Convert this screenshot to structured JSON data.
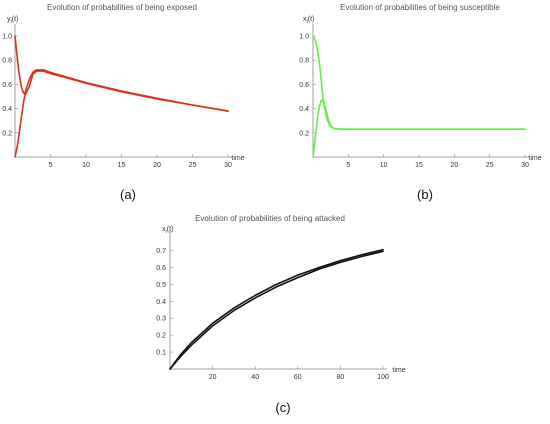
{
  "chart_data": [
    {
      "type": "line",
      "title": "Evolution of probabilities of being exposed",
      "ylabel": "y_i(t)",
      "xlabel": "time",
      "panel_label": "(a)",
      "xlim": [
        0,
        30
      ],
      "ylim": [
        0,
        1.05
      ],
      "xticks": [
        5,
        10,
        15,
        20,
        25,
        30
      ],
      "yticks": [
        0.2,
        0.4,
        0.6,
        0.8,
        1.0
      ],
      "color": "#d9301a",
      "series": [
        {
          "x": [
            0,
            0.3,
            0.6,
            0.9,
            1.2,
            1.5,
            2,
            2.5,
            3,
            4,
            5,
            7,
            10,
            15,
            20,
            25,
            30
          ],
          "y": [
            1.0,
            0.83,
            0.68,
            0.58,
            0.53,
            0.52,
            0.58,
            0.68,
            0.71,
            0.71,
            0.69,
            0.66,
            0.61,
            0.54,
            0.48,
            0.43,
            0.38
          ]
        },
        {
          "x": [
            0,
            0.3,
            0.6,
            0.9,
            1.2,
            1.5,
            2,
            2.5,
            3,
            4,
            5,
            7,
            10,
            15,
            20,
            25,
            30
          ],
          "y": [
            0.0,
            0.08,
            0.2,
            0.33,
            0.45,
            0.55,
            0.64,
            0.7,
            0.72,
            0.72,
            0.7,
            0.665,
            0.615,
            0.545,
            0.485,
            0.43,
            0.38
          ]
        }
      ]
    },
    {
      "type": "line",
      "title": "Evolution of probabilities of being susceptible",
      "ylabel": "x_i(t)",
      "xlabel": "time",
      "panel_label": "(b)",
      "xlim": [
        0,
        30
      ],
      "ylim": [
        0,
        1.05
      ],
      "xticks": [
        5,
        10,
        15,
        20,
        25,
        30
      ],
      "yticks": [
        0.2,
        0.4,
        0.6,
        0.8,
        1.0
      ],
      "color": "#66ee44",
      "series": [
        {
          "x": [
            0,
            0.3,
            0.6,
            0.9,
            1.2,
            1.5,
            2,
            2.5,
            3,
            4,
            5,
            10,
            20,
            30
          ],
          "y": [
            1.0,
            0.97,
            0.9,
            0.78,
            0.62,
            0.45,
            0.31,
            0.25,
            0.235,
            0.23,
            0.23,
            0.23,
            0.23,
            0.23
          ]
        },
        {
          "x": [
            0,
            0.3,
            0.6,
            0.9,
            1.2,
            1.5,
            1.8,
            2.2,
            2.6,
            3,
            4,
            5,
            10,
            20,
            30
          ],
          "y": [
            0.0,
            0.15,
            0.3,
            0.42,
            0.47,
            0.46,
            0.4,
            0.3,
            0.25,
            0.235,
            0.23,
            0.23,
            0.23,
            0.23,
            0.23
          ]
        }
      ]
    },
    {
      "type": "line",
      "title": "Evolution of probabilities of being attacked",
      "ylabel": "x_i(t)",
      "xlabel": "time",
      "panel_label": "(c)",
      "xlim": [
        0,
        100
      ],
      "ylim": [
        0,
        0.78
      ],
      "xticks": [
        20,
        40,
        60,
        80,
        100
      ],
      "yticks": [
        0.1,
        0.2,
        0.3,
        0.4,
        0.5,
        0.6,
        0.7
      ],
      "color": "#111111",
      "series": [
        {
          "x": [
            0,
            5,
            10,
            20,
            30,
            40,
            50,
            60,
            70,
            80,
            90,
            100
          ],
          "y": [
            0.0,
            0.075,
            0.14,
            0.255,
            0.345,
            0.42,
            0.485,
            0.54,
            0.59,
            0.63,
            0.665,
            0.695
          ]
        },
        {
          "x": [
            0,
            5,
            10,
            20,
            30,
            40,
            50,
            60,
            70,
            80,
            90,
            100
          ],
          "y": [
            0.0,
            0.085,
            0.155,
            0.27,
            0.36,
            0.435,
            0.5,
            0.555,
            0.6,
            0.64,
            0.675,
            0.705
          ]
        }
      ]
    }
  ]
}
